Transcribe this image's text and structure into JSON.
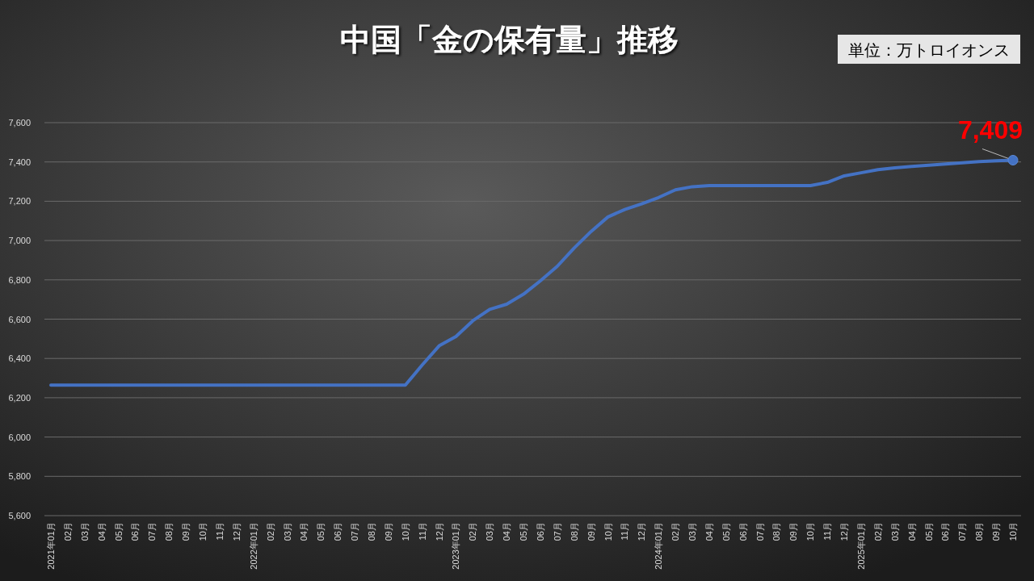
{
  "chart_data": {
    "type": "line",
    "title": "中国「金の保有量」推移",
    "annotations": [
      "単位：万トロイオンス"
    ],
    "categories": [
      "2021年01月",
      "02月",
      "03月",
      "04月",
      "05月",
      "06月",
      "07月",
      "08月",
      "09月",
      "10月",
      "11月",
      "12月",
      "2022年01月",
      "02月",
      "03月",
      "04月",
      "05月",
      "06月",
      "07月",
      "08月",
      "09月",
      "10月",
      "11月",
      "12月",
      "2023年01月",
      "02月",
      "03月",
      "04月",
      "05月",
      "06月",
      "07月",
      "08月",
      "09月",
      "10月",
      "11月",
      "12月",
      "2024年01月",
      "02月",
      "03月",
      "04月",
      "05月",
      "06月",
      "07月",
      "08月",
      "09月",
      "10月",
      "11月",
      "12月",
      "2025年01月",
      "02月",
      "03月",
      "04月",
      "05月",
      "06月",
      "07月",
      "08月",
      "09月",
      "10月"
    ],
    "series": [
      {
        "color": "#4472c4",
        "values": [
          6264,
          6264,
          6264,
          6264,
          6264,
          6264,
          6264,
          6264,
          6264,
          6264,
          6264,
          6264,
          6264,
          6264,
          6264,
          6264,
          6264,
          6264,
          6264,
          6264,
          6264,
          6264,
          6367,
          6464,
          6512,
          6592,
          6650,
          6676,
          6727,
          6795,
          6869,
          6962,
          7046,
          7120,
          7158,
          7187,
          7219,
          7258,
          7274,
          7280,
          7280,
          7280,
          7280,
          7280,
          7280,
          7280,
          7296,
          7329,
          7345,
          7361,
          7370,
          7377,
          7383,
          7390,
          7396,
          7402,
          7406,
          7409
        ],
        "value_labels": [
          null,
          null,
          null,
          null,
          null,
          null,
          null,
          null,
          null,
          null,
          null,
          null,
          null,
          null,
          null,
          null,
          null,
          null,
          null,
          null,
          null,
          null,
          null,
          null,
          null,
          null,
          null,
          null,
          null,
          null,
          null,
          null,
          null,
          null,
          null,
          null,
          null,
          null,
          null,
          null,
          null,
          null,
          null,
          null,
          null,
          null,
          null,
          null,
          null,
          null,
          null,
          null,
          null,
          null,
          null,
          null,
          null,
          "7,409"
        ]
      }
    ],
    "ylim": [
      5600,
      7600
    ],
    "yticks": [
      {
        "value": 5600,
        "label": "5,600"
      },
      {
        "value": 5800,
        "label": "5,800"
      },
      {
        "value": 6000,
        "label": "6,000"
      },
      {
        "value": 6200,
        "label": "6,200"
      },
      {
        "value": 6400,
        "label": "6,400"
      },
      {
        "value": 6600,
        "label": "6,600"
      },
      {
        "value": 6800,
        "label": "6,800"
      },
      {
        "value": 7000,
        "label": "7,000"
      },
      {
        "value": 7200,
        "label": "7,200"
      },
      {
        "value": 7400,
        "label": "7,400"
      },
      {
        "value": 7600,
        "label": "7,600"
      }
    ],
    "grid": "y",
    "marker": "none",
    "line_style": "solid"
  }
}
